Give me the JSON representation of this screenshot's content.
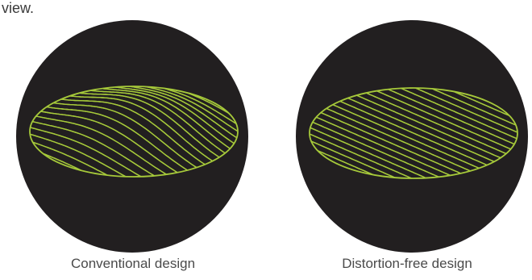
{
  "top_text": "view.",
  "colors": {
    "circle": "#221f20",
    "mesh": "#a6c93a"
  },
  "panels": [
    {
      "caption": "Conventional design",
      "type": "distorted-mesh"
    },
    {
      "caption": "Distortion-free design",
      "type": "flat-mesh"
    }
  ]
}
